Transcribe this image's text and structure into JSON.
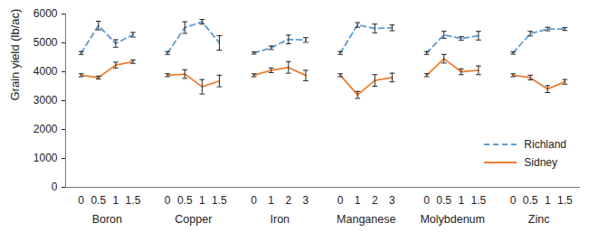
{
  "chart_data": {
    "type": "line",
    "y_label": "Grain yield (lb/ac)",
    "ylim": [
      0,
      6000
    ],
    "yticks": [
      0,
      1000,
      2000,
      3000,
      4000,
      5000,
      6000
    ],
    "grid": false,
    "legend": "lower right",
    "groups": [
      {
        "name": "Boron",
        "categories": [
          "0",
          "0.5",
          "1",
          "1.5"
        ]
      },
      {
        "name": "Copper",
        "categories": [
          "0",
          "0.5",
          "1",
          "1.5"
        ]
      },
      {
        "name": "Iron",
        "categories": [
          "0",
          "1",
          "2",
          "3"
        ]
      },
      {
        "name": "Manganese",
        "categories": [
          "0",
          "1",
          "2",
          "3"
        ]
      },
      {
        "name": "Molybdenum",
        "categories": [
          "0",
          "0.5",
          "1",
          "1.5"
        ]
      },
      {
        "name": "Zinc",
        "categories": [
          "0",
          "0.5",
          "1",
          "1.5"
        ]
      }
    ],
    "series": [
      {
        "name": "Richland",
        "color": "#5b9bd5",
        "line_style": "dashed",
        "values": [
          [
            4650,
            5600,
            4980,
            5280
          ],
          [
            4650,
            5530,
            5730,
            5000
          ],
          [
            4650,
            4830,
            5120,
            5100
          ],
          [
            4650,
            5620,
            5500,
            5520
          ],
          [
            4650,
            5280,
            5150,
            5250
          ],
          [
            4650,
            5320,
            5480,
            5480
          ]
        ],
        "errors": [
          [
            50,
            150,
            130,
            80
          ],
          [
            50,
            200,
            80,
            250
          ],
          [
            40,
            60,
            150,
            80
          ],
          [
            50,
            80,
            150,
            100
          ],
          [
            50,
            120,
            60,
            150
          ],
          [
            40,
            80,
            60,
            50
          ]
        ]
      },
      {
        "name": "Sidney",
        "color": "#ed7d31",
        "line_style": "solid",
        "values": [
          [
            3880,
            3800,
            4230,
            4350
          ],
          [
            3880,
            3920,
            3480,
            3680
          ],
          [
            3880,
            4050,
            4150,
            3870
          ],
          [
            3880,
            3200,
            3700,
            3800
          ],
          [
            3880,
            4450,
            4000,
            4050
          ],
          [
            3880,
            3800,
            3400,
            3650
          ]
        ],
        "errors": [
          [
            50,
            50,
            100,
            60
          ],
          [
            50,
            150,
            250,
            200
          ],
          [
            50,
            80,
            200,
            180
          ],
          [
            50,
            120,
            200,
            150
          ],
          [
            50,
            150,
            100,
            150
          ],
          [
            50,
            80,
            120,
            80
          ]
        ]
      }
    ]
  }
}
